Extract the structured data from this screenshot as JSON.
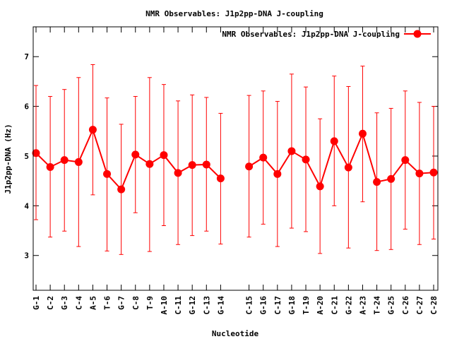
{
  "chart_data": {
    "type": "line",
    "title": "NMR Observables: J1p2pp-DNA J-coupling",
    "xlabel": "Nucleotide",
    "ylabel": "J1p2pp-DNA (Hz)",
    "ylim": [
      2.3,
      7.6
    ],
    "yticks": [
      3,
      4,
      5,
      6,
      7
    ],
    "grid": false,
    "legend_position": "top-right",
    "series": [
      {
        "name": "NMR Observables: J1p2pp-DNA J-coupling",
        "color": "#ff0000",
        "marker": "circle",
        "segments": [
          {
            "categories": [
              "G-1",
              "C-2",
              "G-3",
              "C-4",
              "A-5",
              "T-6",
              "G-7",
              "C-8",
              "T-9",
              "A-10",
              "C-11",
              "G-12",
              "C-13",
              "G-14"
            ],
            "values": [
              5.06,
              4.78,
              4.92,
              4.88,
              5.53,
              4.64,
              4.33,
              5.03,
              4.84,
              5.02,
              4.66,
              4.82,
              4.83,
              4.55
            ],
            "err_low": [
              3.72,
              3.37,
              3.49,
              3.18,
              4.22,
              3.09,
              3.02,
              3.86,
              3.08,
              3.6,
              3.22,
              3.4,
              3.49,
              3.23
            ],
            "err_high": [
              6.42,
              6.2,
              6.34,
              6.58,
              6.84,
              6.17,
              5.64,
              6.2,
              6.58,
              6.44,
              6.11,
              6.23,
              6.18,
              5.86
            ]
          },
          {
            "categories": [
              "C-15",
              "G-16",
              "C-17",
              "G-18",
              "T-19",
              "A-20",
              "C-21",
              "G-22",
              "A-23",
              "T-24",
              "G-25",
              "C-26",
              "C-27",
              "C-28"
            ],
            "values": [
              4.79,
              4.97,
              4.64,
              5.1,
              4.93,
              4.39,
              5.3,
              4.77,
              5.45,
              4.48,
              4.54,
              4.92,
              4.65,
              4.67
            ],
            "err_low": [
              3.37,
              3.63,
              3.18,
              3.55,
              3.48,
              3.04,
              4.0,
              3.15,
              4.08,
              3.1,
              3.12,
              3.53,
              3.22,
              3.33
            ],
            "err_high": [
              6.22,
              6.31,
              6.1,
              6.65,
              6.39,
              5.75,
              6.61,
              6.4,
              6.81,
              5.87,
              5.96,
              6.31,
              6.08,
              6.0
            ]
          }
        ]
      }
    ]
  }
}
